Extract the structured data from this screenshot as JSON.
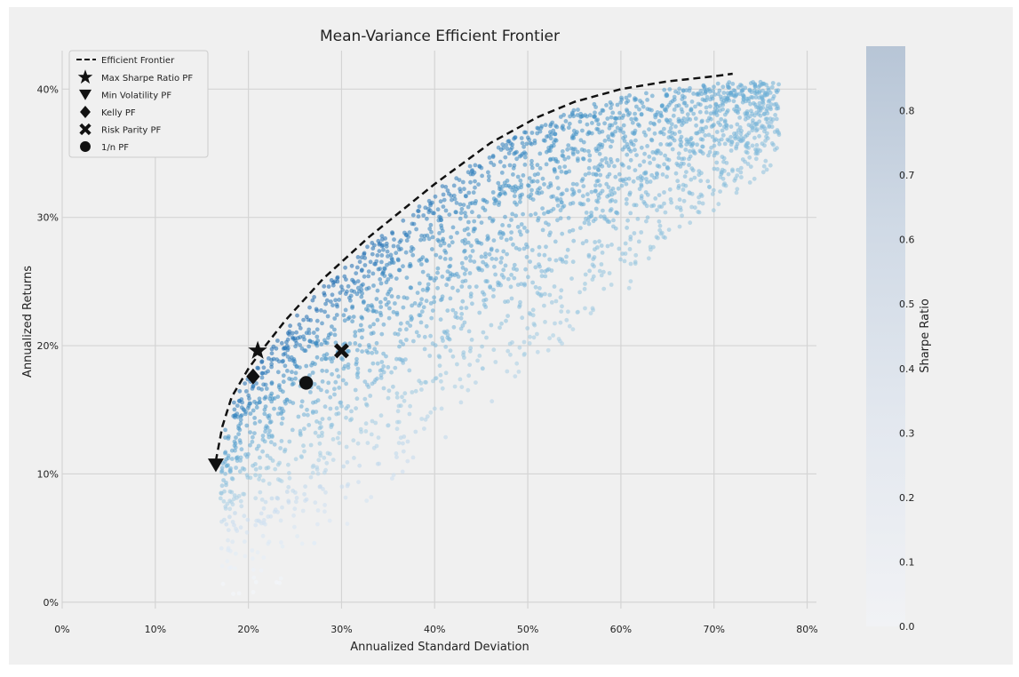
{
  "chart_data": {
    "type": "scatter",
    "title": "Mean-Variance Efficient Frontier",
    "xlabel": "Annualized Standard Deviation",
    "ylabel": "Annualized Returns",
    "xlim": [
      0,
      0.81
    ],
    "ylim": [
      -0.005,
      0.43
    ],
    "x_ticks": [
      0,
      0.1,
      0.2,
      0.3,
      0.4,
      0.5,
      0.6,
      0.7,
      0.8
    ],
    "x_tick_labels": [
      "0%",
      "10%",
      "20%",
      "30%",
      "40%",
      "50%",
      "60%",
      "70%",
      "80%"
    ],
    "y_ticks": [
      0,
      0.1,
      0.2,
      0.3,
      0.4
    ],
    "y_tick_labels": [
      "0%",
      "10%",
      "20%",
      "30%",
      "40%"
    ],
    "grid": true,
    "legend_position": "upper-left",
    "colorbar": {
      "label": "Sharpe Ratio",
      "range": [
        0,
        0.9
      ],
      "ticks": [
        0,
        0.1,
        0.2,
        0.3,
        0.4,
        0.5,
        0.6,
        0.7,
        0.8
      ],
      "tick_labels": [
        "0.0",
        "0.1",
        "0.2",
        "0.3",
        "0.4",
        "0.5",
        "0.6",
        "0.7",
        "0.8"
      ],
      "colormap": [
        "#f4f8fd",
        "#deebf7",
        "#c6dbef",
        "#9ecae1",
        "#6baed6",
        "#4292c6",
        "#2171b5",
        "#08519c"
      ]
    },
    "frontier": {
      "name": "Efficient Frontier",
      "style": "dashed",
      "color": "#111111",
      "x": [
        0.165,
        0.172,
        0.182,
        0.2,
        0.215,
        0.24,
        0.28,
        0.33,
        0.4,
        0.46,
        0.51,
        0.55,
        0.6,
        0.65,
        0.7,
        0.72
      ],
      "y": [
        0.11,
        0.137,
        0.16,
        0.182,
        0.197,
        0.22,
        0.252,
        0.285,
        0.326,
        0.358,
        0.378,
        0.39,
        0.4,
        0.406,
        0.41,
        0.412
      ]
    },
    "portfolios": [
      {
        "name": "Max Sharpe Ratio PF",
        "marker": "star",
        "x": 0.21,
        "y": 0.196
      },
      {
        "name": "Min Volatility PF",
        "marker": "triangle-down",
        "x": 0.165,
        "y": 0.107
      },
      {
        "name": "Kelly PF",
        "marker": "diamond",
        "x": 0.205,
        "y": 0.176
      },
      {
        "name": "Risk Parity PF",
        "marker": "x",
        "x": 0.3,
        "y": 0.196
      },
      {
        "name": "1/n PF",
        "marker": "circle",
        "x": 0.262,
        "y": 0.171
      }
    ],
    "simulated_portfolios": {
      "description": "",
      "x_range": [
        0.17,
        0.77
      ],
      "y_range": [
        0.0,
        0.413
      ],
      "sharpe_range": [
        0.0,
        0.9
      ]
    }
  }
}
